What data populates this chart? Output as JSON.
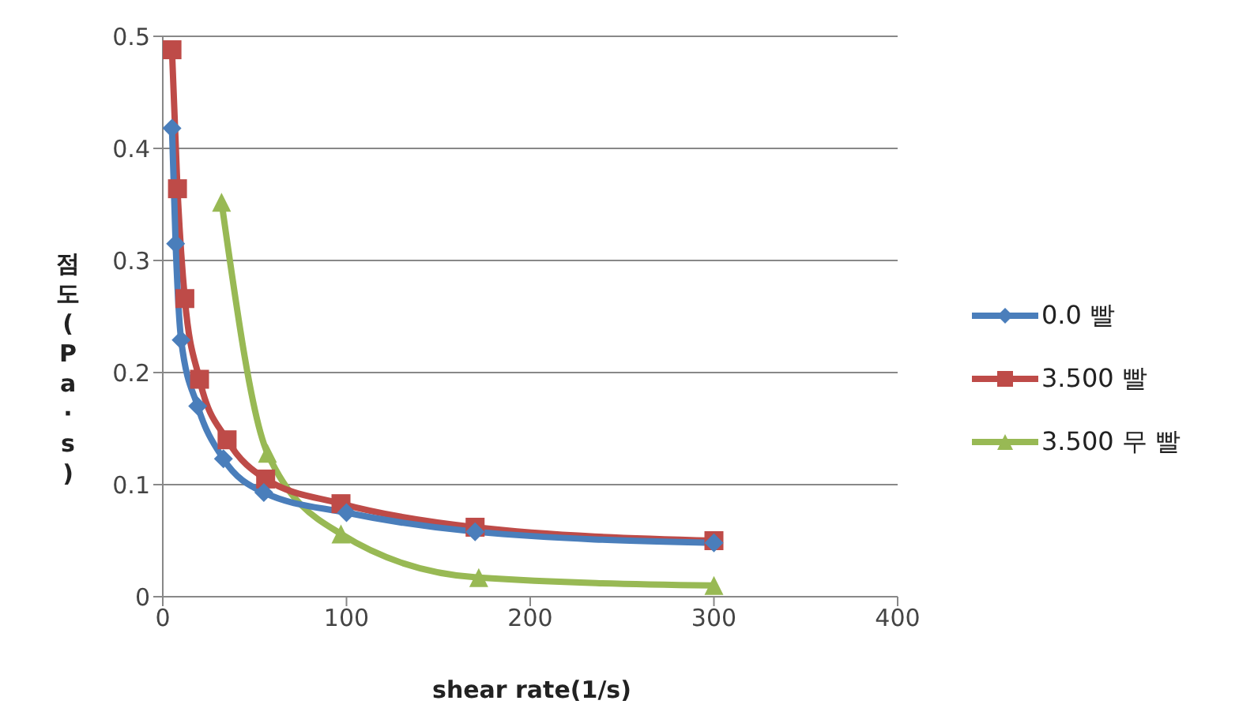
{
  "chart_data": {
    "type": "line",
    "xlabel": "shear rate(1/s)",
    "ylabel": "점도(Pa·s)",
    "xlim": [
      0,
      400
    ],
    "xticks": [
      0,
      100,
      200,
      300,
      400
    ],
    "ylim": [
      0,
      0.5
    ],
    "yticks": [
      0,
      0.1,
      0.2,
      0.3,
      0.4,
      0.5
    ],
    "grid": "y",
    "legend": "right",
    "series": [
      {
        "name": "0.0 빨",
        "color": "#4a7ebb",
        "marker": "diamond",
        "x": [
          5,
          7,
          10,
          19,
          33,
          55,
          100,
          170,
          300
        ],
        "values": [
          0.418,
          0.315,
          0.229,
          0.17,
          0.123,
          0.093,
          0.075,
          0.058,
          0.048
        ]
      },
      {
        "name": "3.500 빨",
        "color": "#be4b48",
        "marker": "square",
        "x": [
          5,
          8,
          12,
          20,
          35,
          56,
          97,
          170,
          300
        ],
        "values": [
          0.488,
          0.364,
          0.266,
          0.194,
          0.14,
          0.105,
          0.083,
          0.062,
          0.05
        ]
      },
      {
        "name": "3.500 무 빨",
        "color": "#98b954",
        "marker": "triangle",
        "x": [
          32,
          57,
          97,
          172,
          300
        ],
        "values": [
          0.352,
          0.128,
          0.056,
          0.017,
          0.01
        ]
      }
    ]
  }
}
